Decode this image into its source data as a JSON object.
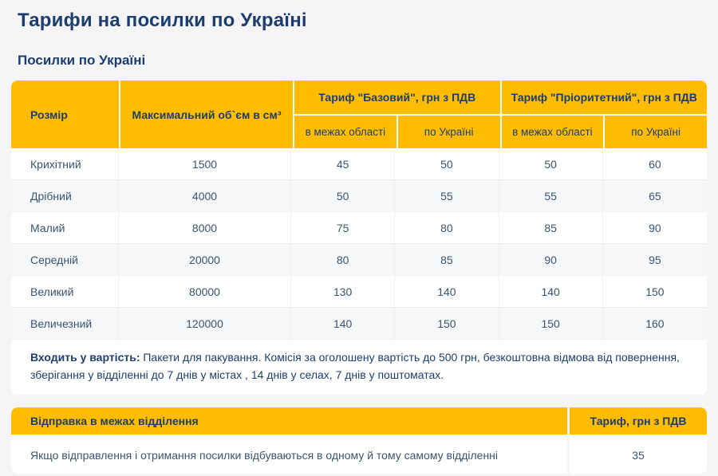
{
  "page": {
    "title": "Тарифи на посилки по Україні",
    "subtitle": "Посилки по Україні"
  },
  "colors": {
    "brand_yellow": "#FFBC00",
    "brand_navy": "#1C3E6E",
    "cell_text": "#3A5470",
    "page_background": "#F5F5F6",
    "row_stripe": "#F6F7F8"
  },
  "main_table": {
    "headers": {
      "size": "Розмір",
      "max_volume": "Максимальний об`єм в см³",
      "basic_group": "Тариф \"Базовий\", грн з ПДВ",
      "priority_group": "Тариф \"Пріоритетний\", грн з ПДВ",
      "within_region": "в межах області",
      "across_ukraine": "по Україні"
    },
    "rows": [
      {
        "size": "Крихітний",
        "max_volume": "1500",
        "basic_region": "45",
        "basic_ukraine": "50",
        "priority_region": "50",
        "priority_ukraine": "60"
      },
      {
        "size": "Дрібний",
        "max_volume": "4000",
        "basic_region": "50",
        "basic_ukraine": "55",
        "priority_region": "55",
        "priority_ukraine": "65"
      },
      {
        "size": "Малий",
        "max_volume": "8000",
        "basic_region": "75",
        "basic_ukraine": "80",
        "priority_region": "85",
        "priority_ukraine": "90"
      },
      {
        "size": "Середній",
        "max_volume": "20000",
        "basic_region": "80",
        "basic_ukraine": "85",
        "priority_region": "90",
        "priority_ukraine": "95"
      },
      {
        "size": "Великий",
        "max_volume": "80000",
        "basic_region": "130",
        "basic_ukraine": "140",
        "priority_region": "140",
        "priority_ukraine": "150"
      },
      {
        "size": "Величезний",
        "max_volume": "120000",
        "basic_region": "140",
        "basic_ukraine": "150",
        "priority_region": "150",
        "priority_ukraine": "160"
      }
    ],
    "note": {
      "lead": "Входить у вартість:",
      "text": " Пакети для пакування. Комісія за оголошену вартість до 500 грн, безкоштовна відмова від повернення, зберігання у відділенні до 7 днів у містах , 14 днів у селах, 7 днів у поштоматах."
    }
  },
  "branch_table": {
    "header_label": "Відправка в межах відділення",
    "tariff_header": "Тариф, грн з ПДВ",
    "row_text": "Якщо відправлення і отримання посилки відбуваються в одному й тому самому відділенні",
    "tariff_value": "35"
  }
}
